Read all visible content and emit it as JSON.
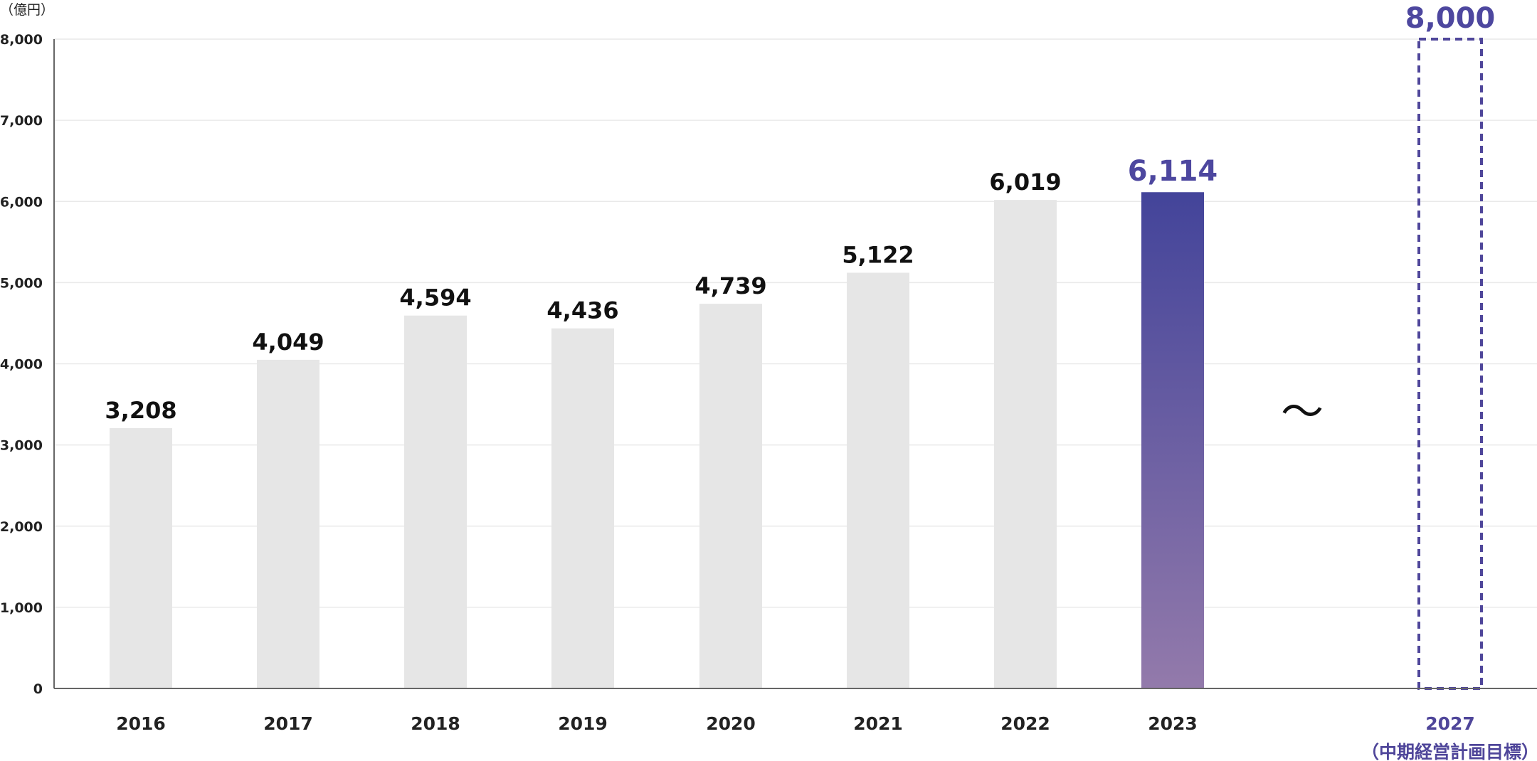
{
  "chart_data": {
    "type": "bar",
    "unit_label": "（億円）",
    "categories": [
      "2016",
      "2017",
      "2018",
      "2019",
      "2020",
      "2021",
      "2022",
      "2023",
      "2027"
    ],
    "values": [
      3208,
      4049,
      4594,
      4436,
      4739,
      5122,
      6019,
      6114,
      8000
    ],
    "value_labels": [
      "3,208",
      "4,049",
      "4,594",
      "4,436",
      "4,739",
      "5,122",
      "6,019",
      "6,114",
      "8,000"
    ],
    "highlight_category": "2023",
    "target_category": "2027",
    "target_note": "（中期経営計画目標）",
    "break_symbol": "～",
    "ylim": [
      0,
      8000
    ],
    "yticks": [
      0,
      1000,
      2000,
      3000,
      4000,
      5000,
      6000,
      7000,
      8000
    ],
    "ytick_labels": [
      "0",
      "1,000",
      "2,000",
      "3,000",
      "4,000",
      "5,000",
      "6,000",
      "7,000",
      "8,000"
    ],
    "grid": true,
    "colors": {
      "bar": "#e6e6e6",
      "highlight_top": "#43449a",
      "highlight_bottom": "#937aab",
      "target_outline": "#4f469a",
      "axis": "#666666",
      "grid": "#e9e9e9"
    }
  }
}
